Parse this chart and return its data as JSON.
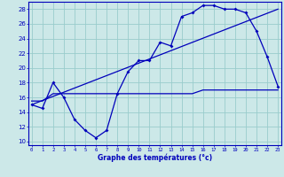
{
  "title": "Graphe des températures (°c)",
  "background_color": "#cce8e8",
  "line_color": "#0000bb",
  "grid_color": "#99cccc",
  "x_ticks": [
    0,
    1,
    2,
    3,
    4,
    5,
    6,
    7,
    8,
    9,
    10,
    11,
    12,
    13,
    14,
    15,
    16,
    17,
    18,
    19,
    20,
    21,
    22,
    23
  ],
  "ylim": [
    9.5,
    29.0
  ],
  "yticks": [
    10,
    12,
    14,
    16,
    18,
    20,
    22,
    24,
    26,
    28
  ],
  "series1_x": [
    0,
    1,
    2,
    3,
    4,
    5,
    6,
    7,
    8,
    9,
    10,
    11,
    12,
    13,
    14,
    15,
    16,
    17,
    18,
    19,
    20,
    21,
    22,
    23
  ],
  "series1_y": [
    15,
    14.5,
    18,
    16,
    13,
    11.5,
    10.5,
    11.5,
    16.5,
    19.5,
    21,
    21,
    23.5,
    23,
    27,
    27.5,
    28.5,
    28.5,
    28,
    28,
    27.5,
    25,
    21.5,
    17.5
  ],
  "series2_x": [
    0,
    23
  ],
  "series2_y": [
    15.0,
    28.0
  ],
  "series3_x": [
    0,
    1,
    2,
    3,
    4,
    5,
    6,
    7,
    8,
    9,
    10,
    11,
    12,
    13,
    14,
    15,
    16,
    17,
    18,
    19,
    20,
    21,
    22,
    23
  ],
  "series3_y": [
    15.5,
    15.5,
    16.5,
    16.5,
    16.5,
    16.5,
    16.5,
    16.5,
    16.5,
    16.5,
    16.5,
    16.5,
    16.5,
    16.5,
    16.5,
    16.5,
    17,
    17,
    17,
    17,
    17,
    17,
    17,
    17
  ]
}
